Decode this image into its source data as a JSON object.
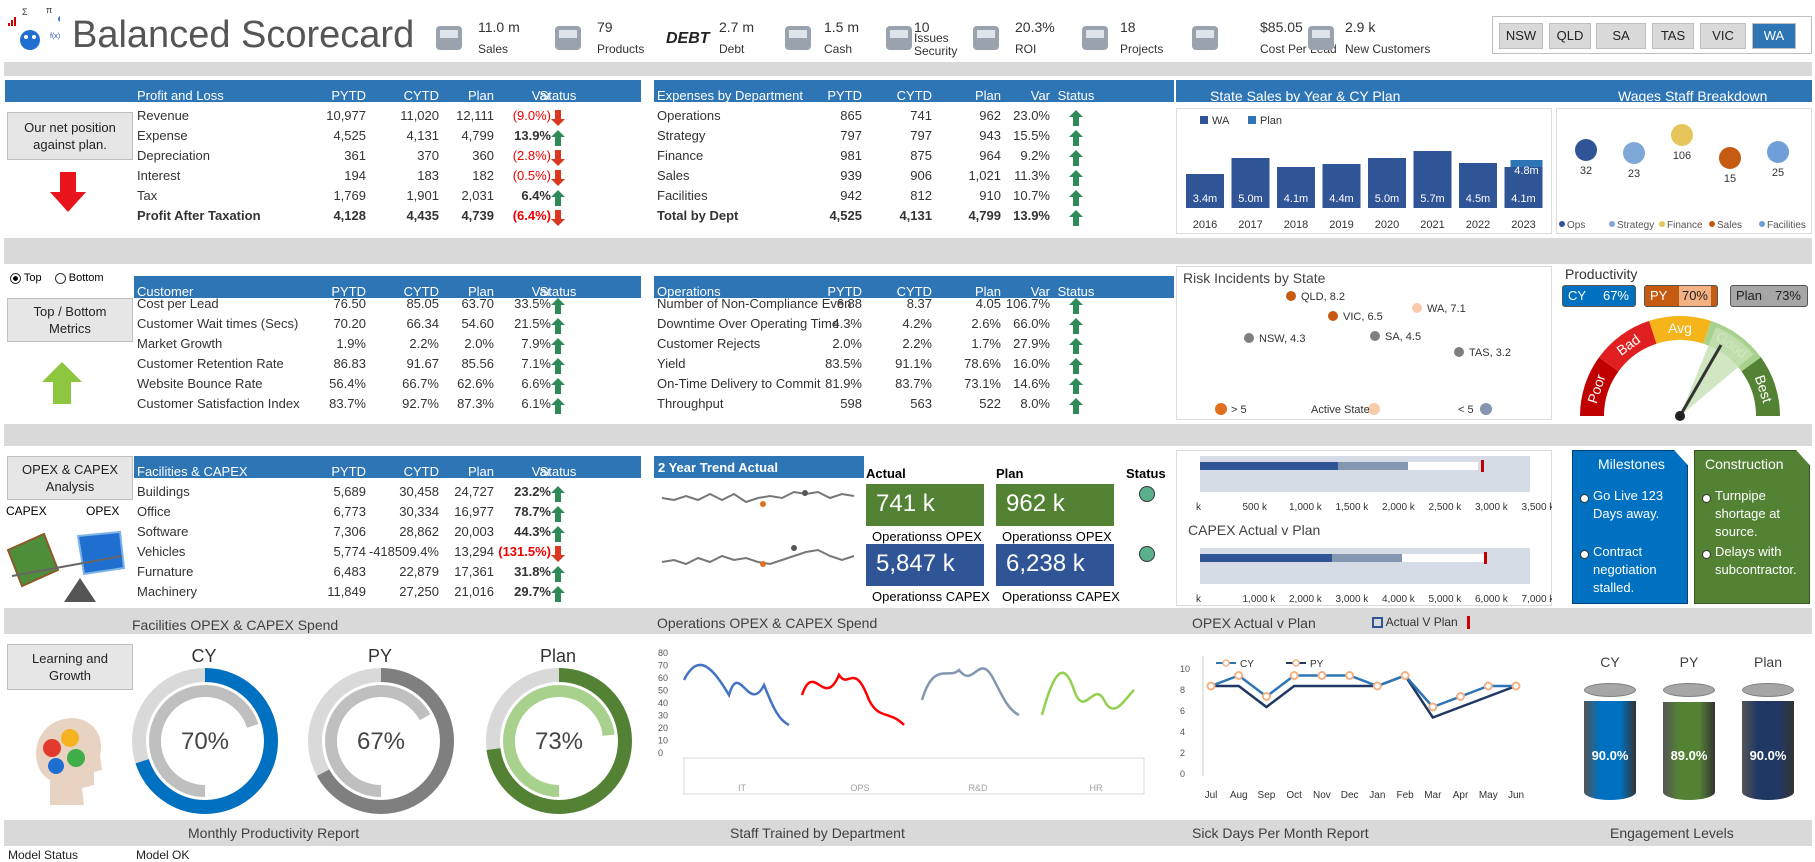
{
  "header": {
    "title": "Balanced Scorecard",
    "kpis": [
      {
        "value": "11.0 m",
        "label": "Sales"
      },
      {
        "value": "79",
        "label": "Products"
      },
      {
        "value": "2.7 m",
        "label": "Debt"
      },
      {
        "value": "1.5 m",
        "label": "Cash"
      },
      {
        "value": "10",
        "label": "Issues Security"
      },
      {
        "value": "20.3%",
        "label": "ROI"
      },
      {
        "value": "18",
        "label": "Projects"
      },
      {
        "value": "$85.05",
        "label": "Cost Per Lead"
      },
      {
        "value": "2.9 k",
        "label": "New Customers"
      }
    ],
    "logo_badge": "DEBT",
    "states": [
      "NSW",
      "QLD",
      "SA",
      "TAS",
      "VIC",
      "WA"
    ],
    "selected_state": "WA"
  },
  "profit": {
    "headers": [
      "Profit and Loss",
      "PYTD",
      "CYTD",
      "Plan",
      "Var",
      "Status"
    ],
    "rows": [
      [
        "Revenue",
        "10,977",
        "11,020",
        "12,111",
        "(9.0%)",
        "down"
      ],
      [
        "Expense",
        "4,525",
        "4,131",
        "4,799",
        "13.9%",
        "up"
      ],
      [
        "Depreciation",
        "361",
        "370",
        "360",
        "(2.8%)",
        "down"
      ],
      [
        "Interest",
        "194",
        "183",
        "182",
        "(0.5%)",
        "down"
      ],
      [
        "Tax",
        "1,769",
        "1,901",
        "2,031",
        "6.4%",
        "up"
      ],
      [
        "Profit After Taxation",
        "4,128",
        "4,435",
        "4,739",
        "(6.4%)",
        "down"
      ]
    ],
    "button": "Our net position against plan."
  },
  "expenses": {
    "headers": [
      "Expenses by Department",
      "PYTD",
      "CYTD",
      "Plan",
      "Var",
      "Status"
    ],
    "rows": [
      [
        "Operations",
        "865",
        "741",
        "962",
        "23.0%",
        "up"
      ],
      [
        "Strategy",
        "797",
        "797",
        "943",
        "15.5%",
        "up"
      ],
      [
        "Finance",
        "981",
        "875",
        "964",
        "9.2%",
        "up"
      ],
      [
        "Sales",
        "939",
        "906",
        "1,021",
        "11.3%",
        "up"
      ],
      [
        "Facilities",
        "942",
        "812",
        "910",
        "10.7%",
        "up"
      ],
      [
        "Total by Dept",
        "4,525",
        "4,131",
        "4,799",
        "13.9%",
        "up"
      ]
    ]
  },
  "state_sales": {
    "title": "State Sales by Year & CY Plan",
    "legend": [
      "WA",
      "Plan"
    ]
  },
  "wages": {
    "title": "Wages Staff Breakdown",
    "legend": [
      "Ops",
      "Strategy",
      "Finance",
      "Sales",
      "Facilities"
    ]
  },
  "customer": {
    "radio": [
      "Top",
      "Bottom"
    ],
    "button": "Top / Bottom Metrics",
    "headers": [
      "Customer",
      "PYTD",
      "CYTD",
      "Plan",
      "Var",
      "Status"
    ],
    "rows": [
      [
        "Cost per Lead",
        "76.50",
        "85.05",
        "63.70",
        "33.5%",
        "up"
      ],
      [
        "Customer Wait times (Secs)",
        "70.20",
        "66.34",
        "54.60",
        "21.5%",
        "up"
      ],
      [
        "Market Growth",
        "1.9%",
        "2.2%",
        "2.0%",
        "7.9%",
        "up"
      ],
      [
        "Customer Retention Rate",
        "86.83",
        "91.67",
        "85.56",
        "7.1%",
        "up"
      ],
      [
        "Website Bounce Rate",
        "56.4%",
        "66.7%",
        "62.6%",
        "6.6%",
        "up"
      ],
      [
        "Customer Satisfaction Index",
        "83.7%",
        "92.7%",
        "87.3%",
        "6.1%",
        "up"
      ]
    ]
  },
  "operations": {
    "headers": [
      "Operations",
      "PYTD",
      "CYTD",
      "Plan",
      "Var",
      "Status"
    ],
    "rows": [
      [
        "Number of Non-Compliance Even",
        "6.88",
        "8.37",
        "4.05",
        "106.7%",
        "up"
      ],
      [
        "Downtime Over Operating Time",
        "4.3%",
        "4.2%",
        "2.6%",
        "66.0%",
        "up"
      ],
      [
        "Customer Rejects",
        "2.0%",
        "2.2%",
        "1.7%",
        "27.9%",
        "up"
      ],
      [
        "Yield",
        "83.5%",
        "91.1%",
        "78.6%",
        "16.0%",
        "up"
      ],
      [
        "On-Time Delivery to Commit",
        "81.9%",
        "83.7%",
        "73.1%",
        "14.6%",
        "up"
      ],
      [
        "Throughput",
        "598",
        "563",
        "522",
        "8.0%",
        "up"
      ]
    ]
  },
  "risk": {
    "title": "Risk Incidents by State",
    "legend": [
      "> 5",
      "Active State",
      "< 5"
    ]
  },
  "productivity": {
    "title": "Productivity",
    "pills": [
      {
        "label": "CY",
        "value": "67%"
      },
      {
        "label": "PY",
        "value": "70%"
      },
      {
        "label": "Plan",
        "value": "73%"
      }
    ],
    "gauge": [
      "Poor",
      "Bad",
      "Avg",
      "Good",
      "Best"
    ]
  },
  "capex": {
    "button": "OPEX & CAPEX Analysis",
    "scale": [
      "CAPEX",
      "OPEX"
    ],
    "headers": [
      "Facilities & CAPEX",
      "PYTD",
      "CYTD",
      "Plan",
      "Var",
      "Status"
    ],
    "rows": [
      [
        "Buildings",
        "5,689",
        "30,458",
        "24,727",
        "23.2%",
        "up"
      ],
      [
        "Office",
        "6,773",
        "30,334",
        "16,977",
        "78.7%",
        "up"
      ],
      [
        "Software",
        "7,306",
        "28,862",
        "20,003",
        "44.3%",
        "up"
      ],
      [
        "Vehicles",
        "5,774",
        "-418509.4%",
        "13,294",
        "(131.5%)",
        "down"
      ],
      [
        "Furnature",
        "6,483",
        "22,879",
        "17,361",
        "31.8%",
        "up"
      ],
      [
        "Machinery",
        "11,849",
        "27,250",
        "21,016",
        "29.7%",
        "up"
      ]
    ]
  },
  "trend": {
    "title": "2 Year Trend Actual",
    "actual": "Actual",
    "plan": "Plan",
    "status": "Status",
    "tiles": [
      {
        "value": "741 k",
        "label": "Operationss OPEX"
      },
      {
        "value": "962 k",
        "label": "Operationss OPEX"
      },
      {
        "value": "5,847 k",
        "label": "Operationss CAPEX"
      },
      {
        "value": "6,238 k",
        "label": "Operationss CAPEX"
      }
    ]
  },
  "bullet": {
    "ticks1": [
      "k",
      "500 k",
      "1,000 k",
      "1,500 k",
      "2,000 k",
      "2,500 k",
      "3,000 k",
      "3,500 k"
    ],
    "title2": "CAPEX Actual v Plan",
    "ticks2": [
      "k",
      "1,000 k",
      "2,000 k",
      "3,000 k",
      "4,000 k",
      "5,000 k",
      "6,000 k",
      "7,000 k"
    ]
  },
  "milestones": {
    "title": "Milestones",
    "items": [
      "Go Live 123 Days away.",
      "Contract negotiation stalled."
    ]
  },
  "construction": {
    "title": "Construction",
    "items": [
      "Turnpipe shortage at source.",
      "Delays with subcontractor."
    ]
  },
  "band_labels": {
    "b1": "Facilities OPEX & CAPEX Spend",
    "b2": "Operations OPEX & CAPEX Spend",
    "b3": "OPEX Actual v Plan",
    "b3legend": "Actual V Plan",
    "b4": "Monthly Productivity Report",
    "b5": "Staff Trained by Department",
    "b6": "Sick Days Per Month Report",
    "b7": "Engagement Levels"
  },
  "learning": {
    "button": "Learning and Growth",
    "donuts": [
      {
        "label": "CY",
        "value": "70%"
      },
      {
        "label": "PY",
        "value": "67%"
      },
      {
        "label": "Plan",
        "value": "73%"
      }
    ]
  },
  "staff_chart": {
    "yticks": [
      "80",
      "70",
      "60",
      "50",
      "40",
      "30",
      "20",
      "10",
      "0"
    ],
    "groups": [
      "IT",
      "OPS",
      "R&D",
      "HR"
    ]
  },
  "sick": {
    "legend": [
      "CY",
      "PY"
    ],
    "yticks": [
      "10",
      "8",
      "6",
      "4",
      "2",
      "0"
    ],
    "months": [
      "Jul",
      "Aug",
      "Sep",
      "Oct",
      "Nov",
      "Dec",
      "Jan",
      "Feb",
      "Mar",
      "Apr",
      "May",
      "Jun"
    ]
  },
  "engagement": {
    "items": [
      {
        "label": "CY",
        "value": "90.0%"
      },
      {
        "label": "PY",
        "value": "89.0%"
      },
      {
        "label": "Plan",
        "value": "90.0%"
      }
    ]
  },
  "footer": {
    "status_label": "Model Status",
    "status_value": "Model OK"
  },
  "chart_data": [
    {
      "type": "bar",
      "title": "State Sales by Year & CY Plan",
      "categories": [
        "2016",
        "2017",
        "2018",
        "2019",
        "2020",
        "2021",
        "2022",
        "2023"
      ],
      "series": [
        {
          "name": "WA",
          "values": [
            3.4,
            5.0,
            4.1,
            4.4,
            5.0,
            5.7,
            4.5,
            4.1
          ]
        },
        {
          "name": "Plan",
          "values": [
            null,
            null,
            null,
            null,
            null,
            null,
            null,
            4.8
          ]
        }
      ],
      "labels": [
        "3.4m",
        "5.0m",
        "4.1m",
        "4.4m",
        "5.0m",
        "5.7m",
        "4.5m",
        "4.1m",
        "4.8m"
      ]
    },
    {
      "type": "scatter",
      "title": "Wages Staff Breakdown",
      "points": [
        {
          "name": "Ops",
          "value": 32
        },
        {
          "name": "Strategy",
          "value": 23
        },
        {
          "name": "Finance",
          "value": 106
        },
        {
          "name": "Sales",
          "value": 15
        },
        {
          "name": "Facilities",
          "value": 25
        }
      ]
    },
    {
      "type": "scatter",
      "title": "Risk Incidents by State",
      "points": [
        {
          "name": "QLD",
          "value": 8.2
        },
        {
          "name": "VIC",
          "value": 6.5
        },
        {
          "name": "WA",
          "value": 7.1
        },
        {
          "name": "NSW",
          "value": 4.3
        },
        {
          "name": "SA",
          "value": 4.5
        },
        {
          "name": "TAS",
          "value": 3.2
        }
      ]
    },
    {
      "type": "pie",
      "title": "Monthly Productivity Report",
      "values": [
        {
          "name": "CY",
          "value": 70
        },
        {
          "name": "PY",
          "value": 67
        },
        {
          "name": "Plan",
          "value": 73
        }
      ]
    },
    {
      "type": "line",
      "title": "Sick Days Per Month Report",
      "x": [
        "Jul",
        "Aug",
        "Sep",
        "Oct",
        "Nov",
        "Dec",
        "Jan",
        "Feb",
        "Mar",
        "Apr",
        "May",
        "Jun"
      ],
      "series": [
        {
          "name": "CY",
          "values": [
            8,
            9,
            7,
            9,
            9,
            9,
            8,
            9,
            6,
            7,
            8,
            8
          ]
        },
        {
          "name": "PY",
          "values": [
            8,
            8,
            6,
            8,
            8,
            8,
            8,
            9,
            5,
            6,
            7,
            8
          ]
        }
      ],
      "ylim": [
        0,
        10
      ]
    },
    {
      "type": "bar",
      "title": "Engagement Levels",
      "categories": [
        "CY",
        "PY",
        "Plan"
      ],
      "values": [
        90.0,
        89.0,
        90.0
      ]
    }
  ]
}
